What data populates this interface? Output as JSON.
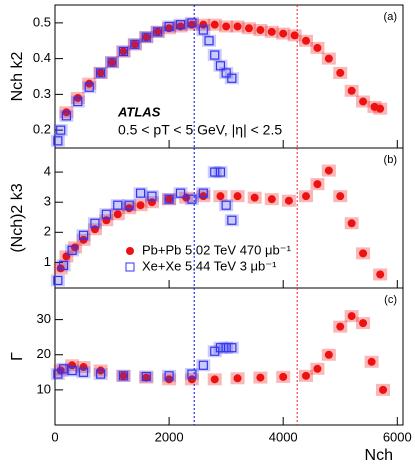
{
  "chart_data": [
    {
      "type": "scatter",
      "panel_label": "(a)",
      "ylabel": "Nch k2",
      "annotations": [
        "ATLAS",
        "0.5 < pT < 5 GeV, |η| < 2.5"
      ],
      "xlim": [
        0,
        6100
      ],
      "xticks": [
        0,
        2000,
        4000,
        6000
      ],
      "ylim": [
        0.15,
        0.55
      ],
      "yticks": [
        0.2,
        0.3,
        0.4,
        0.5
      ],
      "vlines": [
        {
          "x": 2440,
          "color": "#0000ee"
        },
        {
          "x": 4245,
          "color": "#ee2222"
        }
      ],
      "series": [
        {
          "name": "Pb+Pb 5.02 TeV 470 μb⁻¹",
          "color": "#ee1111",
          "x": [
            200,
            400,
            600,
            800,
            1000,
            1200,
            1400,
            1600,
            1800,
            2000,
            2200,
            2400,
            2600,
            2800,
            3000,
            3200,
            3400,
            3600,
            3800,
            4000,
            4200,
            4400,
            4600,
            4800,
            5000,
            5200,
            5400,
            5600,
            5700
          ],
          "values": [
            0.25,
            0.29,
            0.33,
            0.36,
            0.39,
            0.42,
            0.44,
            0.46,
            0.475,
            0.485,
            0.49,
            0.495,
            0.495,
            0.495,
            0.49,
            0.49,
            0.485,
            0.48,
            0.475,
            0.47,
            0.465,
            0.45,
            0.43,
            0.4,
            0.36,
            0.31,
            0.28,
            0.265,
            0.26
          ]
        },
        {
          "name": "Xe+Xe 5.44 TeV 3 μb⁻¹",
          "color": "#3333ee",
          "x": [
            50,
            100,
            200,
            400,
            600,
            800,
            1000,
            1200,
            1400,
            1600,
            1800,
            2000,
            2200,
            2400,
            2600,
            2700,
            2800,
            2900,
            3000,
            3100
          ],
          "values": [
            0.17,
            0.2,
            0.24,
            0.28,
            0.32,
            0.36,
            0.39,
            0.42,
            0.44,
            0.46,
            0.475,
            0.49,
            0.495,
            0.5,
            0.48,
            0.45,
            0.41,
            0.38,
            0.36,
            0.345
          ]
        }
      ]
    },
    {
      "type": "scatter",
      "panel_label": "(b)",
      "ylabel": "(Nch)2 k3",
      "legend": "lower center",
      "xlim": [
        0,
        6100
      ],
      "xticks": [
        0,
        2000,
        4000,
        6000
      ],
      "ylim": [
        0.15,
        4.8
      ],
      "yticks": [
        1,
        2,
        3,
        4
      ],
      "vlines": [
        {
          "x": 2440,
          "color": "#0000ee"
        },
        {
          "x": 4245,
          "color": "#ee2222"
        }
      ],
      "series": [
        {
          "name": "Pb+Pb 5.02 TeV 470 μb⁻¹",
          "color": "#ee1111",
          "x": [
            100,
            200,
            350,
            500,
            700,
            900,
            1100,
            1300,
            1500,
            1700,
            2000,
            2300,
            2600,
            2900,
            3200,
            3500,
            3800,
            4100,
            4400,
            4600,
            4800,
            5000,
            5200,
            5400,
            5700
          ],
          "values": [
            0.8,
            1.2,
            1.5,
            1.75,
            2.1,
            2.4,
            2.6,
            2.8,
            2.9,
            3.0,
            3.1,
            3.15,
            3.2,
            3.2,
            3.2,
            3.15,
            3.1,
            3.05,
            3.2,
            3.6,
            4.05,
            3.2,
            2.3,
            1.3,
            0.6
          ]
        },
        {
          "name": "Xe+Xe 5.44 TeV 3 μb⁻¹",
          "color": "#3333ee",
          "x": [
            50,
            150,
            300,
            500,
            700,
            900,
            1100,
            1300,
            1500,
            1700,
            2000,
            2200,
            2400,
            2600,
            2800,
            2900,
            3000,
            3100
          ],
          "values": [
            0.4,
            0.9,
            1.4,
            1.9,
            2.3,
            2.6,
            2.9,
            2.9,
            3.3,
            3.2,
            3.1,
            3.3,
            3.1,
            3.3,
            4.0,
            4.0,
            2.9,
            2.4
          ]
        }
      ]
    },
    {
      "type": "scatter",
      "panel_label": "(c)",
      "ylabel": "Γ",
      "xlabel": "Nch",
      "xlim": [
        0,
        6100
      ],
      "xticks": [
        0,
        2000,
        4000,
        6000
      ],
      "ylim": [
        0,
        39
      ],
      "yticks": [
        10,
        20,
        30
      ],
      "vlines": [
        {
          "x": 2440,
          "color": "#0000ee"
        },
        {
          "x": 4245,
          "color": "#ee2222"
        }
      ],
      "series": [
        {
          "name": "Pb+Pb 5.02 TeV 470 μb⁻¹",
          "color": "#ee1111",
          "x": [
            100,
            300,
            500,
            800,
            1200,
            1600,
            2000,
            2400,
            2800,
            3200,
            3600,
            4000,
            4400,
            4600,
            4800,
            5000,
            5200,
            5400,
            5550,
            5750
          ],
          "values": [
            15.5,
            17,
            16.5,
            15.5,
            14,
            13.5,
            13,
            13,
            13,
            13.3,
            13.5,
            13.7,
            14,
            16,
            20,
            28,
            31,
            29,
            18,
            10
          ]
        },
        {
          "name": "Xe+Xe 5.44 TeV 3 μb⁻¹",
          "color": "#3333ee",
          "x": [
            50,
            150,
            300,
            500,
            800,
            1200,
            1600,
            2000,
            2400,
            2600,
            2800,
            2900,
            3000,
            3100
          ],
          "values": [
            14.5,
            16,
            15.5,
            15,
            14.5,
            14,
            13.8,
            14,
            14.5,
            17,
            21,
            22,
            22,
            22
          ]
        }
      ]
    }
  ]
}
